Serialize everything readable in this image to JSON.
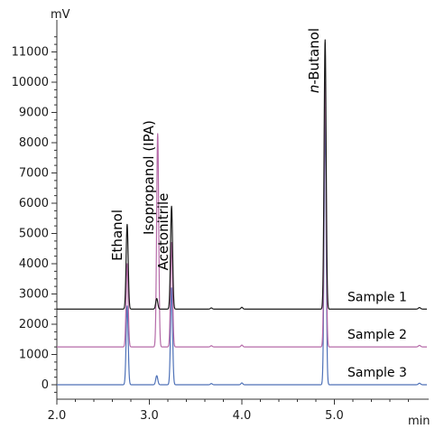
{
  "chart_data": {
    "type": "line",
    "xlabel": "min",
    "ylabel": "mV",
    "xlim": [
      2.0,
      6.0
    ],
    "ylim": [
      -300,
      11700
    ],
    "xticks": [
      "2.0",
      "3.0",
      "4.0",
      "5.0"
    ],
    "yticks": [
      "0",
      "1000",
      "2000",
      "3000",
      "4000",
      "5000",
      "6000",
      "7000",
      "8000",
      "9000",
      "10000",
      "11000"
    ],
    "grid": false,
    "peak_labels": [
      {
        "prefix": "",
        "name": "Ethanol",
        "x": 2.76
      },
      {
        "prefix": "",
        "name": "Isopropanol (IPA)",
        "x": 3.08
      },
      {
        "prefix": "",
        "name": "Acetonitrile",
        "x": 3.24
      },
      {
        "prefix": "n",
        "name": "-Butanol",
        "x": 4.9
      }
    ],
    "series": [
      {
        "name": "Sample 1",
        "color": "#1a1a1a",
        "baseline": 2500,
        "peaks": [
          {
            "x": 2.76,
            "y": 5300
          },
          {
            "x": 3.08,
            "y": 2850
          },
          {
            "x": 3.24,
            "y": 5900
          },
          {
            "x": 4.9,
            "y": 11400
          }
        ]
      },
      {
        "name": "Sample 2",
        "color": "#b56aa8",
        "baseline": 1250,
        "peaks": [
          {
            "x": 2.76,
            "y": 4000
          },
          {
            "x": 3.09,
            "y": 8300
          },
          {
            "x": 3.24,
            "y": 4700
          },
          {
            "x": 4.9,
            "y": 10000
          }
        ]
      },
      {
        "name": "Sample 3",
        "color": "#4f72b8",
        "baseline": 0,
        "peaks": [
          {
            "x": 2.76,
            "y": 2600
          },
          {
            "x": 3.08,
            "y": 300
          },
          {
            "x": 3.24,
            "y": 3200
          },
          {
            "x": 4.9,
            "y": 8800
          }
        ]
      }
    ]
  }
}
